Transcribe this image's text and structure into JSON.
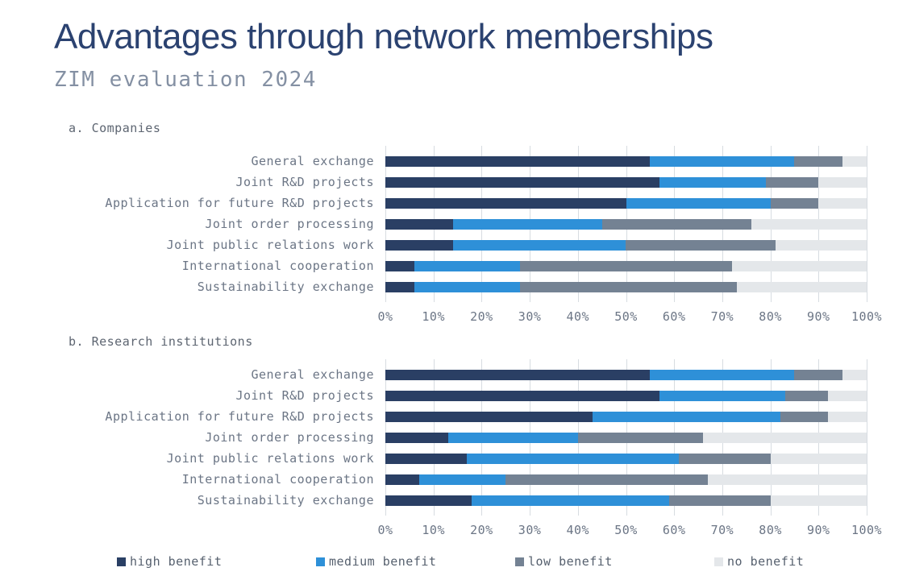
{
  "title": "Advantages through network memberships",
  "subtitle": "ZIM evaluation 2024",
  "legend": [
    {
      "label": "high benefit",
      "color": "#2a3f64"
    },
    {
      "label": "medium benefit",
      "color": "#2e90d8"
    },
    {
      "label": "low benefit",
      "color": "#748293"
    },
    {
      "label": "no benefit",
      "color": "#e4e7ea"
    }
  ],
  "colors": {
    "grid": "#d7dce1",
    "title": "#2b4270",
    "subtitle": "#8490a3",
    "labels": "#6b7585",
    "high_benefit": "#2a3f64",
    "medium_benefit": "#2e90d8",
    "low_benefit": "#748293",
    "no_benefit": "#e4e7ea"
  },
  "chart_data": [
    {
      "type": "bar",
      "orientation": "horizontal",
      "stacked": true,
      "title": "a. Companies",
      "categories": [
        "General exchange",
        "Joint R&D projects",
        "Application for future R&D projects",
        "Joint order processing",
        "Joint public relations work",
        "International cooperation",
        "Sustainability exchange"
      ],
      "series": [
        {
          "name": "high benefit",
          "color": "#2a3f64",
          "values": [
            55,
            57,
            50,
            14,
            14,
            6,
            6
          ]
        },
        {
          "name": "medium benefit",
          "color": "#2e90d8",
          "values": [
            30,
            22,
            30,
            31,
            36,
            22,
            22
          ]
        },
        {
          "name": "low benefit",
          "color": "#748293",
          "values": [
            10,
            11,
            10,
            31,
            31,
            44,
            45
          ]
        },
        {
          "name": "no benefit",
          "color": "#e4e7ea",
          "values": [
            5,
            10,
            10,
            24,
            19,
            28,
            27
          ]
        }
      ],
      "xlim": [
        0,
        100
      ],
      "x_ticks": [
        "0%",
        "10%",
        "20%",
        "30%",
        "40%",
        "50%",
        "60%",
        "70%",
        "80%",
        "90%",
        "100%"
      ],
      "grid": true,
      "legend_position": "bottom"
    },
    {
      "type": "bar",
      "orientation": "horizontal",
      "stacked": true,
      "title": "b. Research institutions",
      "categories": [
        "General exchange",
        "Joint R&D projects",
        "Application for future R&D projects",
        "Joint order processing",
        "Joint public relations work",
        "International cooperation",
        "Sustainability exchange"
      ],
      "series": [
        {
          "name": "high benefit",
          "color": "#2a3f64",
          "values": [
            55,
            57,
            43,
            13,
            17,
            7,
            18
          ]
        },
        {
          "name": "medium benefit",
          "color": "#2e90d8",
          "values": [
            30,
            26,
            39,
            27,
            44,
            18,
            41
          ]
        },
        {
          "name": "low benefit",
          "color": "#748293",
          "values": [
            10,
            9,
            10,
            26,
            19,
            42,
            21
          ]
        },
        {
          "name": "no benefit",
          "color": "#e4e7ea",
          "values": [
            5,
            8,
            8,
            34,
            20,
            33,
            20
          ]
        }
      ],
      "xlim": [
        0,
        100
      ],
      "x_ticks": [
        "0%",
        "10%",
        "20%",
        "30%",
        "40%",
        "50%",
        "60%",
        "70%",
        "80%",
        "90%",
        "100%"
      ],
      "grid": true,
      "legend_position": "bottom"
    }
  ]
}
